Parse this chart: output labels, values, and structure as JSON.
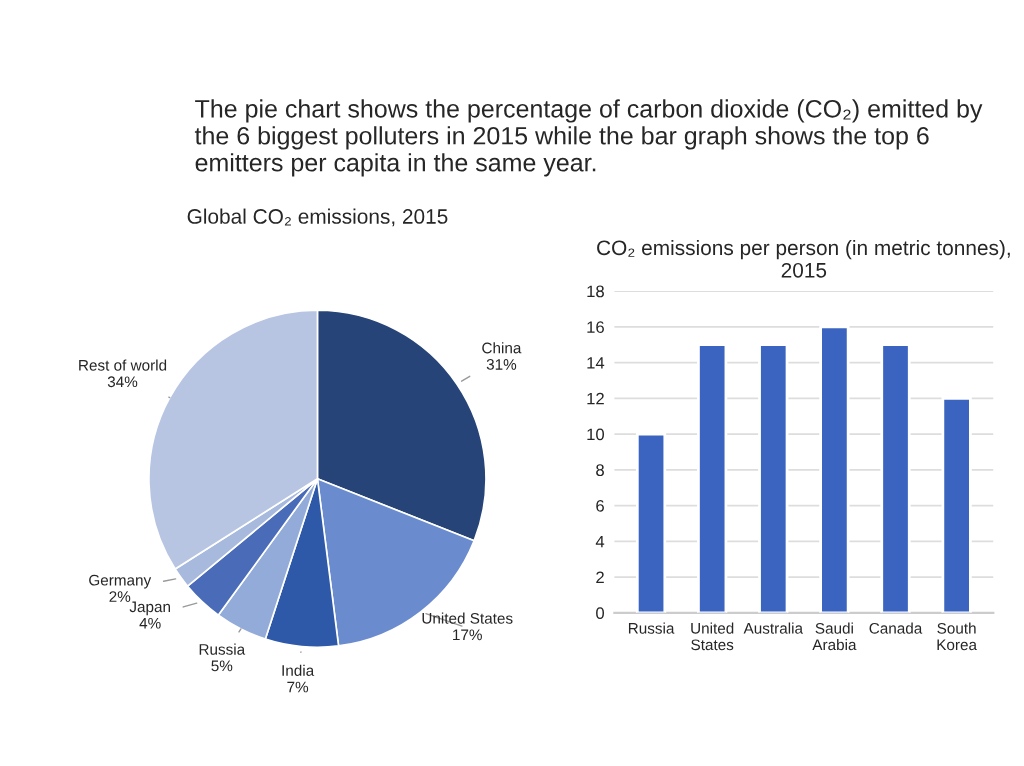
{
  "chart_data": [
    {
      "type": "pie",
      "title": "Global CO₂ emissions, 2015",
      "annotations": [
        "The pie chart shows the percentage of carbon dioxide (CO₂) emitted by the 6 biggest polluters in 2015 while the bar graph shows the top 6 emitters per capita in the same year."
      ],
      "categories": [
        "China",
        "United States",
        "India",
        "Russia",
        "Japan",
        "Germany",
        "Rest of world"
      ],
      "values": [
        31,
        17,
        7,
        5,
        4,
        2,
        34
      ],
      "value_labels": [
        "31%",
        "17%",
        "7%",
        "5%",
        "4%",
        "2%",
        "34%"
      ],
      "colors": [
        "#264478",
        "#6a8cce",
        "#2e58a8",
        "#93abd9",
        "#4a6cb8",
        "#a8b9de",
        "#b7c5e2"
      ]
    },
    {
      "type": "bar",
      "title": "CO₂ emissions per person (in metric tonnes), 2015",
      "categories": [
        "Russia",
        "United States",
        "Australia",
        "Saudi Arabia",
        "Canada",
        "South Korea"
      ],
      "values": [
        10,
        15,
        15,
        16,
        15,
        12
      ],
      "color": "#3a64c0",
      "ylim": [
        0,
        18
      ],
      "yticks": [
        0,
        2,
        4,
        6,
        8,
        10,
        12,
        14,
        16,
        18
      ],
      "grid": "y"
    }
  ]
}
